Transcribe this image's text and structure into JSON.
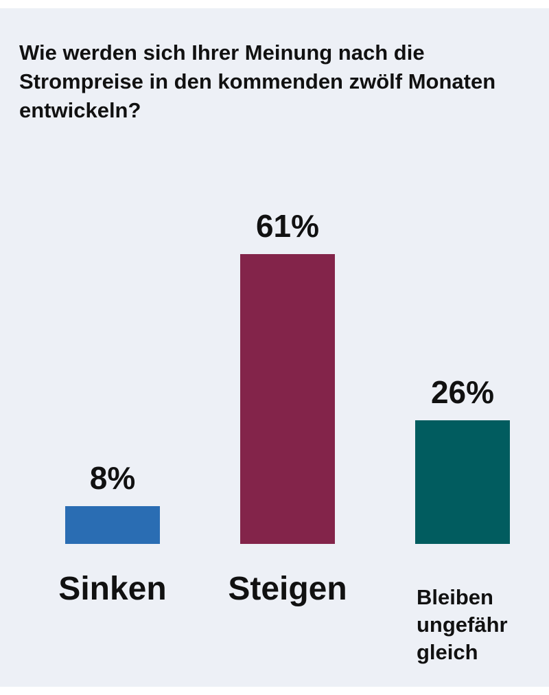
{
  "chart_data": {
    "type": "bar",
    "title": "Wie werden sich Ihrer Meinung nach die Strompreise in den kommenden zwölf Monaten entwickeln?",
    "categories": [
      "Sinken",
      "Steigen",
      "Bleiben ungefähr gleich"
    ],
    "values": [
      8,
      61,
      26
    ],
    "value_labels": [
      "8%",
      "61%",
      "26%"
    ],
    "colors": [
      "#2a6db3",
      "#83244a",
      "#015c5f"
    ]
  }
}
